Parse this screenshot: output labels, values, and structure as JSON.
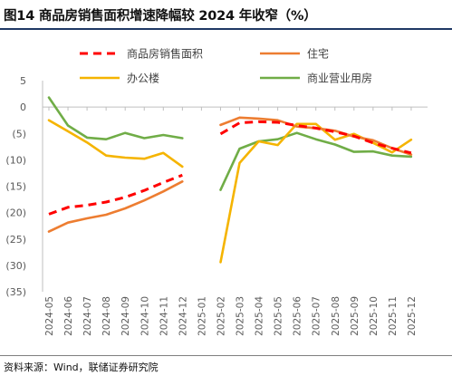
{
  "title": "图14 商品房销售面积增速降幅较 2024 年收窄（%）",
  "source": "资料来源：Wind，联储证券研究院",
  "chart_data": {
    "type": "line",
    "categories": [
      "2024-05",
      "2024-06",
      "2024-07",
      "2024-08",
      "2024-09",
      "2024-10",
      "2024-11",
      "2024-12",
      "2025-01",
      "2025-02",
      "2025-03",
      "2025-04",
      "2025-05",
      "2025-06",
      "2025-07",
      "2025-08",
      "2025-09",
      "2025-10",
      "2025-11",
      "2025-12"
    ],
    "yticks": [
      "5",
      "0",
      "(5)",
      "(10)",
      "(15)",
      "(20)",
      "(25)",
      "(30)",
      "(35)"
    ],
    "ylim": [
      -35,
      5
    ],
    "grid": false,
    "legend_position": "top",
    "series": [
      {
        "name": "商品房销售面积",
        "color": "#ff0000",
        "dashed": true,
        "values": [
          -20.3,
          -19.0,
          -18.6,
          -18.0,
          -17.1,
          -15.8,
          -14.3,
          -12.9,
          null,
          -5.1,
          -3.0,
          -2.8,
          -2.9,
          -3.5,
          -4.0,
          -4.7,
          -5.5,
          -6.8,
          -7.8,
          -8.7
        ]
      },
      {
        "name": "住宅",
        "color": "#ed7d31",
        "dashed": false,
        "values": [
          -23.6,
          -21.9,
          -21.1,
          -20.4,
          -19.2,
          -17.7,
          -16.0,
          -14.1,
          null,
          -3.4,
          -2.0,
          -2.2,
          -2.5,
          -3.7,
          -4.0,
          -4.5,
          -5.6,
          -6.3,
          -7.8,
          -9.0
        ]
      },
      {
        "name": "办公楼",
        "color": "#f5b400",
        "dashed": false,
        "values": [
          -2.5,
          -4.6,
          -6.7,
          -9.2,
          -9.6,
          -9.8,
          -8.7,
          -11.3,
          null,
          -29.4,
          -10.6,
          -6.5,
          -7.2,
          -3.2,
          -3.2,
          -6.2,
          -5.1,
          -6.8,
          -8.6,
          -6.2
        ]
      },
      {
        "name": "商业营业用房",
        "color": "#70ad47",
        "dashed": false,
        "values": [
          1.8,
          -3.5,
          -5.8,
          -6.1,
          -4.9,
          -5.9,
          -5.3,
          -5.9,
          null,
          -15.7,
          -7.9,
          -6.5,
          -6.1,
          -4.9,
          -6.1,
          -7.1,
          -8.5,
          -8.4,
          -9.2,
          -9.4
        ]
      }
    ]
  }
}
